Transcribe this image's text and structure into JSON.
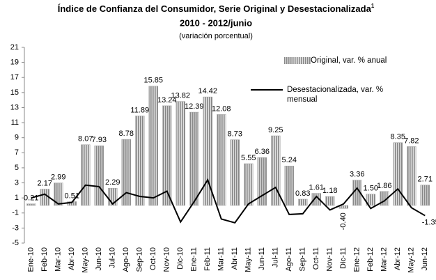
{
  "chart_data": {
    "type": "bar-line",
    "title": "Índice de Confianza del Consumidor, Serie Original y Desestacionalizada",
    "title_superscript": "1",
    "subtitle": "2010 - 2012/junio",
    "note": "(variación porcentual)",
    "categories": [
      "Ene-10",
      "Feb-10",
      "Mar-10",
      "Abr-10",
      "May-10",
      "Jun-10",
      "Jul-10",
      "Ago-10",
      "Sep-10",
      "Oct-10",
      "Nov-10",
      "Dic-10",
      "Ene-11",
      "Feb-11",
      "Mar-11",
      "Abr-11",
      "May-11",
      "Jun-11",
      "Jul-11",
      "Ago-11",
      "Sep-11",
      "Oct-11",
      "Nov-11",
      "Dic-11",
      "Ene-12",
      "Feb-12",
      "Mar-12",
      "Abr-12",
      "May-12",
      "Jun-12"
    ],
    "series": [
      {
        "name": "Original, var. % anual",
        "kind": "bar",
        "color": "#a0a0a0",
        "values": [
          0.21,
          2.17,
          2.99,
          0.51,
          8.07,
          7.93,
          2.29,
          8.78,
          11.89,
          15.85,
          13.24,
          13.82,
          12.39,
          14.42,
          12.08,
          8.73,
          5.55,
          6.36,
          9.25,
          5.24,
          0.83,
          1.61,
          1.18,
          -0.4,
          3.36,
          1.5,
          1.86,
          8.35,
          7.82,
          2.71
        ],
        "value_labels": [
          "0.21",
          "2.17",
          "2.99",
          "0.51",
          "8.07",
          "7.93",
          "2.29",
          "8.78",
          "11.89",
          "15.85",
          "13.24",
          "13.82",
          "12.39",
          "14.42",
          "12.08",
          "8.73",
          "5.55",
          "6.36",
          "9.25",
          "5.24",
          "0.83",
          "1.61",
          "1.18",
          "-0.40",
          "3.36",
          "1.50",
          "1.86",
          "8.35",
          "7.82",
          "2.71"
        ]
      },
      {
        "name": "Desestacionalizada, var. % mensual",
        "kind": "line",
        "color": "#000000",
        "values": [
          1.0,
          1.5,
          0.2,
          0.4,
          2.7,
          2.5,
          0.2,
          1.7,
          1.2,
          1.0,
          1.9,
          -2.2,
          0.5,
          3.4,
          -1.8,
          -2.3,
          0.2,
          1.3,
          2.4,
          -1.2,
          -1.1,
          1.2,
          -0.6,
          0.2,
          2.3,
          -0.4,
          0.6,
          2.2,
          -0.3,
          -1.35
        ],
        "value_labels": [
          null,
          null,
          null,
          null,
          null,
          null,
          null,
          null,
          null,
          null,
          null,
          null,
          null,
          null,
          null,
          null,
          null,
          null,
          null,
          null,
          null,
          null,
          null,
          null,
          null,
          null,
          null,
          null,
          null,
          "-1.35"
        ]
      }
    ],
    "ylim": [
      -5,
      21
    ],
    "yticks": [
      -5,
      -3,
      -1,
      1,
      3,
      5,
      7,
      9,
      11,
      13,
      15,
      17,
      19,
      21
    ]
  }
}
